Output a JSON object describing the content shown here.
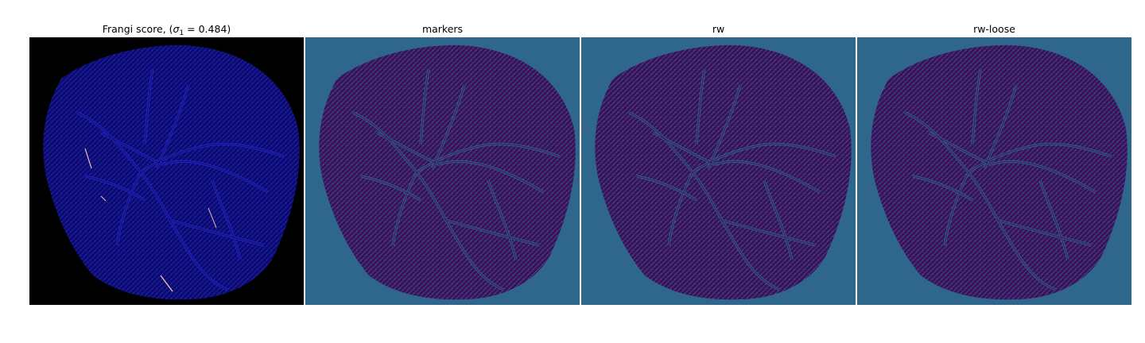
{
  "panels": [
    {
      "title_prefix": "Frangi score, (",
      "title_sigma": "σ",
      "title_sub": "1",
      "title_suffix": " = 0.484)",
      "background": "#000000",
      "fill": "#0b0b6e",
      "vessel": "#2727c8",
      "highlight": "#f2c1a8"
    },
    {
      "title": "markers",
      "background": "#2e678b",
      "fill": "#3d0f5c",
      "vessel": "#2e678b",
      "highlight": "#3d0f5c"
    },
    {
      "title": "rw",
      "background": "#2e678b",
      "fill": "#3d0f5c",
      "vessel": "#2e678b",
      "highlight": "#3d0f5c"
    },
    {
      "title": "rw-loose",
      "background": "#2e678b",
      "fill": "#3d0f5c",
      "vessel": "#2e678b",
      "highlight": "#3d0f5c"
    }
  ]
}
